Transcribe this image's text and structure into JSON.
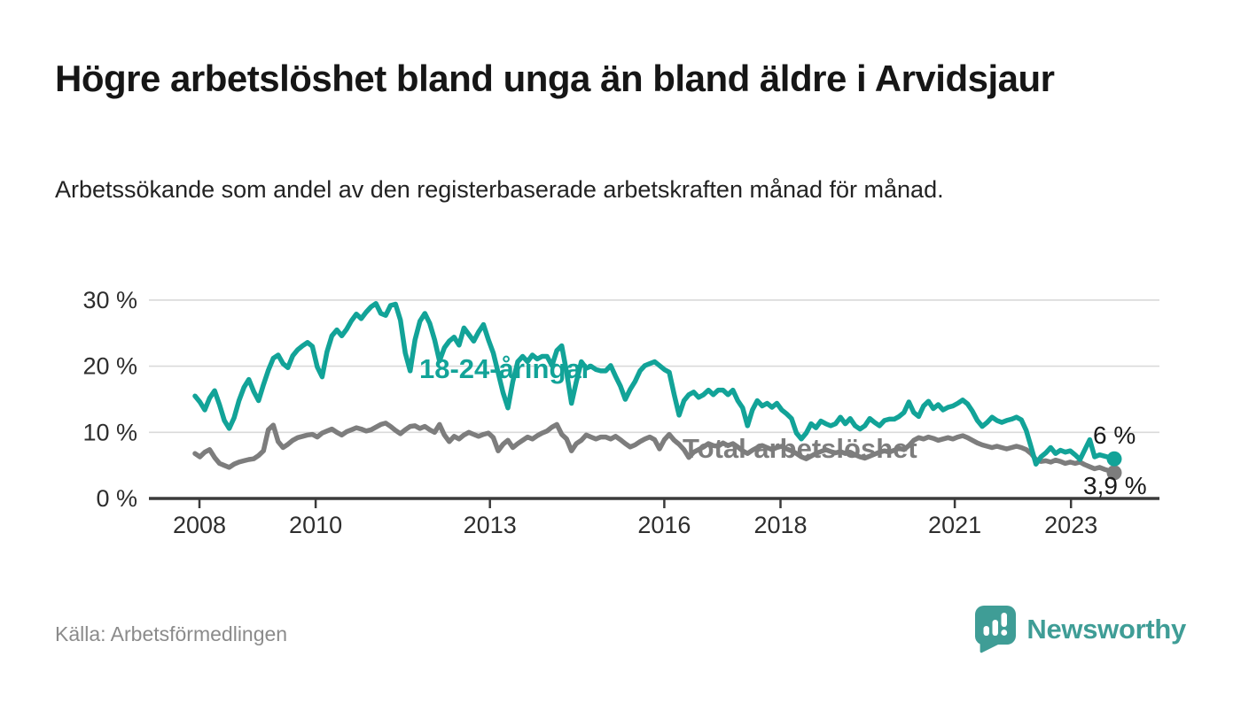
{
  "title": "Högre arbetslöshet bland unga än bland äldre i Arvidsjaur",
  "subtitle": "Arbetssökande som andel av den registerbaserade arbetskraften månad för månad.",
  "source": "Källa: Arbetsförmedlingen",
  "brand": {
    "name": "Newsworthy",
    "logo_icon": "speech-bubble-bar-chart-icon"
  },
  "colors": {
    "youth": "#12a398",
    "total": "#7d7d7d",
    "value_label": "#1a1a1a",
    "grid": "#dadada",
    "axis": "#3b3b3b",
    "brand": "#3f9d96"
  },
  "chart_data": {
    "type": "line",
    "title": "Högre arbetslöshet bland unga än bland äldre i Arvidsjaur",
    "subtitle": "Arbetssökande som andel av den registerbaserade arbetskraften månad för månad.",
    "x_start": "2008-01",
    "x_end": "2023-09",
    "points_per_year": 12,
    "ylim": [
      0,
      31
    ],
    "grid": "horizontal",
    "y_tick_labels": [
      "30 %",
      "20 %",
      "10 %",
      "0 %"
    ],
    "y_tick_values": [
      30,
      20,
      10,
      0
    ],
    "x_tick_labels": [
      "2008",
      "2010",
      "2013",
      "2016",
      "2018",
      "2021",
      "2023"
    ],
    "x_tick_years": [
      2008,
      2010,
      2013,
      2016,
      2018,
      2021,
      2023
    ],
    "series": [
      {
        "name": "Total arbetslöshet",
        "color": "#7d7d7d",
        "end_label": "3,9 %",
        "end_value": 3.9,
        "values": [
          6.8,
          6.3,
          7.0,
          7.4,
          6.2,
          5.3,
          5.0,
          4.7,
          5.2,
          5.5,
          5.7,
          5.9,
          6.0,
          6.5,
          7.2,
          10.4,
          11.1,
          8.6,
          7.7,
          8.2,
          8.8,
          9.2,
          9.4,
          9.6,
          9.7,
          9.3,
          9.9,
          10.2,
          10.5,
          10.0,
          9.6,
          10.1,
          10.4,
          10.7,
          10.5,
          10.2,
          10.4,
          10.8,
          11.2,
          11.4,
          10.9,
          10.3,
          9.8,
          10.4,
          10.9,
          11.0,
          10.6,
          10.9,
          10.4,
          10.0,
          11.2,
          9.6,
          8.6,
          9.4,
          9.0,
          9.6,
          10.0,
          9.7,
          9.4,
          9.7,
          9.9,
          9.2,
          7.2,
          8.2,
          8.8,
          7.7,
          8.3,
          8.8,
          9.3,
          9.0,
          9.5,
          9.9,
          10.2,
          10.8,
          11.2,
          9.7,
          9.0,
          7.2,
          8.3,
          8.8,
          9.6,
          9.3,
          9.0,
          9.3,
          9.3,
          9.0,
          9.4,
          8.9,
          8.3,
          7.8,
          8.1,
          8.6,
          9.0,
          9.3,
          8.9,
          7.5,
          8.9,
          9.7,
          8.8,
          8.2,
          7.4,
          6.2,
          7.0,
          7.4,
          7.8,
          8.3,
          8.0,
          7.9,
          8.4,
          8.0,
          8.3,
          7.8,
          7.2,
          6.8,
          7.3,
          7.7,
          8.0,
          7.7,
          7.4,
          7.7,
          7.9,
          7.5,
          7.2,
          6.8,
          6.3,
          6.0,
          6.4,
          6.8,
          7.1,
          7.4,
          7.1,
          6.9,
          7.1,
          6.8,
          7.0,
          6.6,
          6.3,
          6.1,
          6.4,
          6.7,
          7.0,
          7.2,
          7.0,
          7.3,
          7.6,
          7.4,
          8.0,
          8.8,
          9.2,
          9.0,
          9.3,
          9.1,
          8.8,
          9.0,
          9.2,
          9.0,
          9.3,
          9.5,
          9.2,
          8.8,
          8.4,
          8.1,
          7.9,
          7.7,
          7.9,
          7.7,
          7.5,
          7.7,
          7.9,
          7.7,
          7.4,
          6.8,
          5.9,
          5.6,
          5.7,
          5.5,
          5.8,
          5.6,
          5.3,
          5.5,
          5.3,
          5.5,
          5.1,
          4.8,
          4.5,
          4.7,
          4.4,
          4.2,
          3.9
        ]
      },
      {
        "name": "18-24-åringar",
        "color": "#12a398",
        "end_label": "6 %",
        "end_value": 6.0,
        "values": [
          15.5,
          14.6,
          13.4,
          15.2,
          16.3,
          14.2,
          11.8,
          10.6,
          12.2,
          14.8,
          16.8,
          18.0,
          16.2,
          14.8,
          17.2,
          19.4,
          21.2,
          21.7,
          20.4,
          19.8,
          21.6,
          22.5,
          23.1,
          23.6,
          23.0,
          19.9,
          18.4,
          22.2,
          24.6,
          25.5,
          24.6,
          25.6,
          26.9,
          27.9,
          27.2,
          28.2,
          29.0,
          29.5,
          28.0,
          27.7,
          29.2,
          29.4,
          27.0,
          22.0,
          19.3,
          24.0,
          26.8,
          28.0,
          26.5,
          24.0,
          20.8,
          22.8,
          23.8,
          24.4,
          23.2,
          25.8,
          24.8,
          23.8,
          25.2,
          26.3,
          24.0,
          22.0,
          19.0,
          16.0,
          13.7,
          17.7,
          20.7,
          21.5,
          20.7,
          21.7,
          21.1,
          21.5,
          21.5,
          20.1,
          22.4,
          23.1,
          19.1,
          14.4,
          17.7,
          20.7,
          19.7,
          20.0,
          19.5,
          19.3,
          19.3,
          20.1,
          18.5,
          17.0,
          15.0,
          16.5,
          17.7,
          19.3,
          20.1,
          20.4,
          20.7,
          20.1,
          19.5,
          19.1,
          15.7,
          12.6,
          14.8,
          15.7,
          16.1,
          15.3,
          15.7,
          16.4,
          15.7,
          16.4,
          16.4,
          15.7,
          16.4,
          14.8,
          13.7,
          11.0,
          13.4,
          14.8,
          14.0,
          14.4,
          13.8,
          14.4,
          13.4,
          12.8,
          12.1,
          9.9,
          9.0,
          9.9,
          11.3,
          10.7,
          11.7,
          11.3,
          11.0,
          11.3,
          12.3,
          11.3,
          12.1,
          11.0,
          10.5,
          11.0,
          12.1,
          11.5,
          11.0,
          11.8,
          12.0,
          12.0,
          12.4,
          13.0,
          14.6,
          13.0,
          12.4,
          14.0,
          14.7,
          13.6,
          14.2,
          13.4,
          13.8,
          14.0,
          14.4,
          14.9,
          14.3,
          13.2,
          11.8,
          10.9,
          11.5,
          12.3,
          11.8,
          11.5,
          11.8,
          12.0,
          12.3,
          11.9,
          10.3,
          7.8,
          5.2,
          6.3,
          6.9,
          7.7,
          6.8,
          7.3,
          7.0,
          7.2,
          6.6,
          5.9,
          7.4,
          8.9,
          6.3,
          6.6,
          6.4,
          6.2,
          6.0
        ]
      }
    ],
    "legend_position": "inline-labels"
  }
}
